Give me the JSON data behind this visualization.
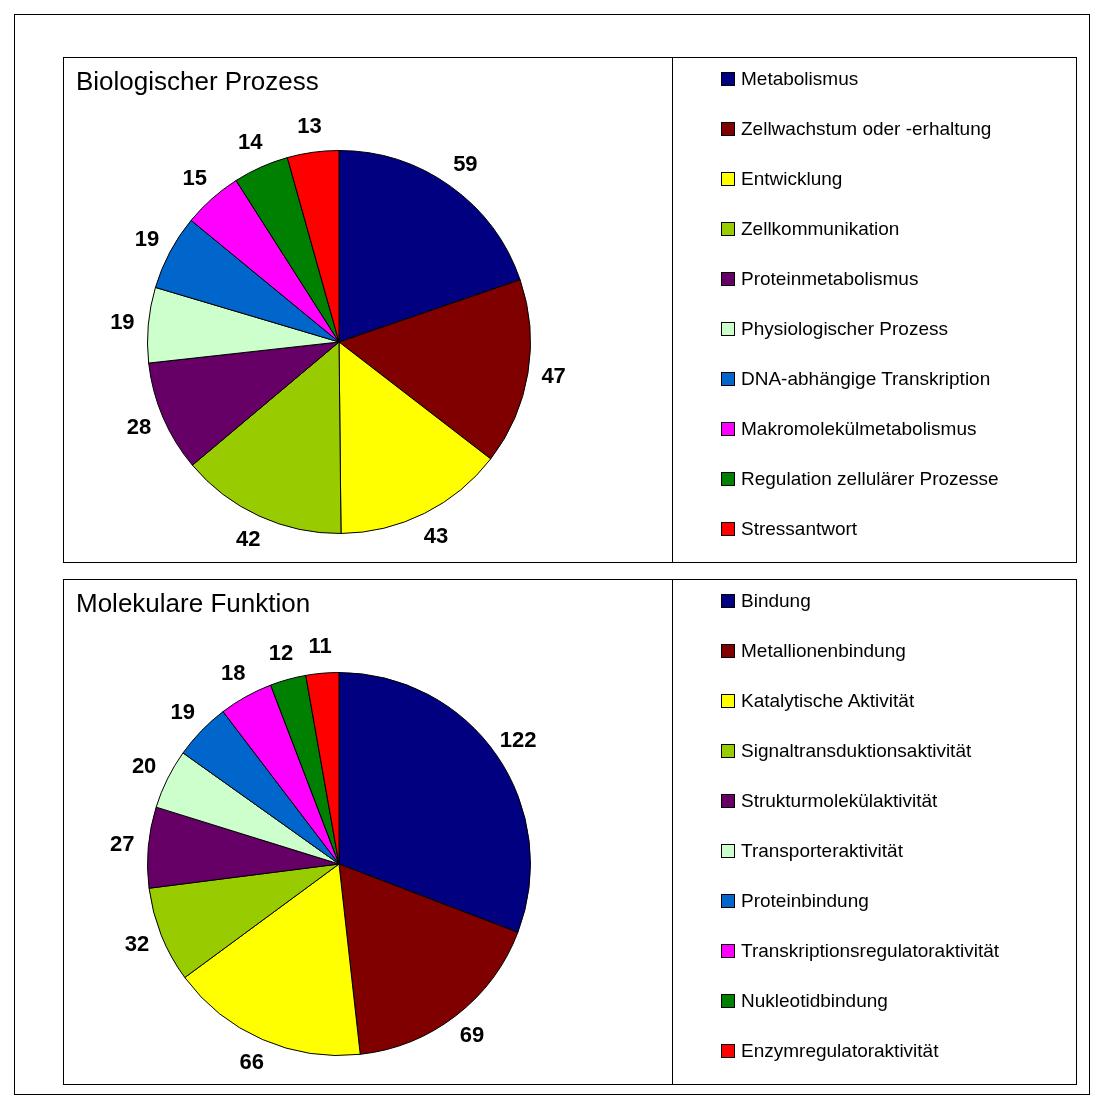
{
  "chart_data": [
    {
      "type": "pie",
      "title": "Biologischer Prozess",
      "categories": [
        "Metabolismus",
        "Zellwachstum oder -erhaltung",
        "Entwicklung",
        "Zellkommunikation",
        "Proteinmetabolismus",
        "Physiologischer Prozess",
        "DNA-abhängige Transkription",
        "Makromolekülmetabolismus",
        "Regulation zellulärer Prozesse",
        "Stressantwort"
      ],
      "values": [
        59,
        47,
        43,
        42,
        28,
        19,
        19,
        15,
        14,
        13
      ],
      "colors": [
        "#000080",
        "#800000",
        "#ffff00",
        "#99cc00",
        "#660066",
        "#ccffcc",
        "#0066cc",
        "#ff00ff",
        "#008000",
        "#ff0000"
      ],
      "data_labels": true,
      "legend": "right"
    },
    {
      "type": "pie",
      "title": "Molekulare Funktion",
      "categories": [
        "Bindung",
        "Metallionenbindung",
        "Katalytische Aktivität",
        "Signaltransduktionsaktivität",
        "Strukturmolekülaktivität",
        "Transporteraktivität",
        "Proteinbindung",
        "Transkriptionsregulatoraktivität",
        "Nukleotidbindung",
        "Enzymregulatoraktivität"
      ],
      "values": [
        122,
        69,
        66,
        32,
        27,
        20,
        19,
        18,
        12,
        11
      ],
      "colors": [
        "#000080",
        "#800000",
        "#ffff00",
        "#99cc00",
        "#660066",
        "#ccffcc",
        "#0066cc",
        "#ff00ff",
        "#008000",
        "#ff0000"
      ],
      "data_labels": true,
      "legend": "right"
    }
  ]
}
